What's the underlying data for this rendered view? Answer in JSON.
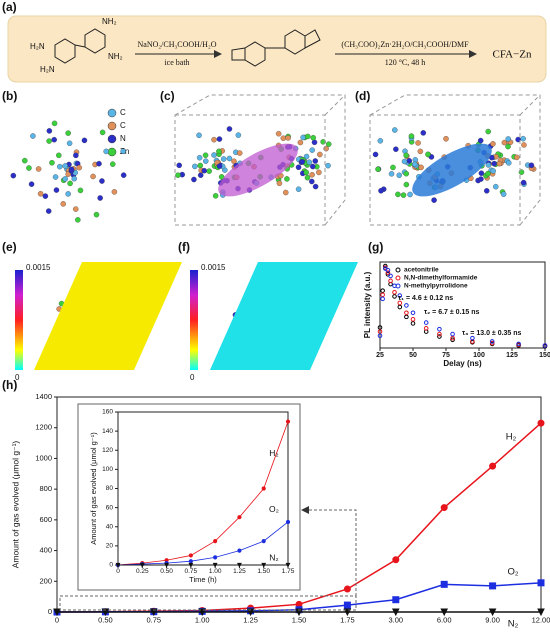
{
  "panel_labels": [
    "(a)",
    "(b)",
    "(c)",
    "(d)",
    "(e)",
    "(f)",
    "(g)",
    "(h)"
  ],
  "scheme": {
    "reagent1": "NaNO₂/CH₃COOH/H₂O",
    "condition1": "ice bath",
    "reagent2": "(CH₃COO)₂Zn·2H₂O/CH₃COOH/DMF",
    "condition2": "120 °C, 48 h",
    "product": "CFA−Zn"
  },
  "legend_b": [
    {
      "label": "C",
      "color": "#5ab4e5"
    },
    {
      "label": "C",
      "color": "#e0905a"
    },
    {
      "label": "N",
      "color": "#2b2fc8"
    },
    {
      "label": "Zn",
      "color": "#3ccf3c"
    }
  ],
  "colorbars": [
    {
      "max": 0.0015,
      "min": 0
    },
    {
      "max": 0.0015,
      "min": 0
    }
  ],
  "chart_data": [
    {
      "type": "scatter",
      "xlabel": "Delay (ns)",
      "ylabel": "PL intensity (a.u.)",
      "x": [
        25,
        27,
        29,
        31,
        33,
        36,
        40,
        45,
        50,
        60,
        70,
        80,
        95,
        110,
        130,
        150
      ],
      "xlim": [
        25,
        150
      ],
      "xticks": [
        25,
        50,
        75,
        100,
        125,
        150
      ],
      "ylim": [
        0,
        1.05
      ],
      "series": [
        {
          "name": "acetonitrile",
          "color": "#000000",
          "values": [
            0.25,
            0.7,
            1.0,
            0.9,
            0.78,
            0.63,
            0.5,
            0.38,
            0.3,
            0.2,
            0.14,
            0.1,
            0.07,
            0.05,
            0.03,
            0.02
          ]
        },
        {
          "name": "N,N-dimethylformamide",
          "color": "#e8141c",
          "values": [
            0.2,
            0.65,
            0.98,
            0.92,
            0.82,
            0.68,
            0.55,
            0.43,
            0.35,
            0.24,
            0.17,
            0.12,
            0.08,
            0.06,
            0.04,
            0.03
          ]
        },
        {
          "name": "N-methylpyrrolidone",
          "color": "#1c2ee0",
          "values": [
            0.15,
            0.6,
            0.97,
            0.95,
            0.88,
            0.76,
            0.64,
            0.52,
            0.43,
            0.31,
            0.23,
            0.17,
            0.12,
            0.08,
            0.05,
            0.03
          ]
        }
      ],
      "annotations": [
        {
          "text": "τ₁ = 4.6 ± 0.12 ns",
          "color": "#000000"
        },
        {
          "text": "τ₂ = 6.7 ± 0.15 ns",
          "color": "#e8141c"
        },
        {
          "text": "τ₃ = 13.0 ± 0.35 ns",
          "color": "#1c2ee0"
        }
      ]
    },
    {
      "type": "line",
      "ylabel": "Amount of gas evolved (μmol g⁻¹)",
      "categories": [
        "0",
        "0.50",
        "0.75",
        "1.00",
        "1.25",
        "1.50",
        "1.75",
        "3.00",
        "6.00",
        "9.00",
        "12.00"
      ],
      "ylim": [
        0,
        1400
      ],
      "yticks": [
        0,
        200,
        400,
        600,
        800,
        1000,
        1200,
        1400
      ],
      "series": [
        {
          "name": "H₂",
          "color": "#e8141c",
          "marker": "circle",
          "values": [
            0,
            2,
            5,
            10,
            25,
            50,
            150,
            340,
            680,
            950,
            1230
          ]
        },
        {
          "name": "O₂",
          "color": "#1c2ee0",
          "marker": "square",
          "values": [
            0,
            1,
            2,
            4,
            8,
            15,
            45,
            80,
            180,
            170,
            190
          ]
        },
        {
          "name": "N₂",
          "color": "#111111",
          "marker": "triangle",
          "values": [
            0,
            0,
            0,
            0,
            0,
            0,
            0,
            0,
            0,
            0,
            0
          ]
        }
      ]
    },
    {
      "type": "line",
      "xlabel": "Time (h)",
      "ylabel": "Amount of gas evolved (μmol g⁻¹)",
      "x": [
        0,
        0.25,
        0.5,
        0.75,
        1,
        1.25,
        1.5,
        1.75
      ],
      "xlim": [
        0,
        1.75
      ],
      "xticks": [
        0,
        0.25,
        {
          "value": 0.5,
          "label": "0.50"
        },
        0.75,
        {
          "value": 1,
          "label": "1.00"
        },
        1.25,
        {
          "value": 1.5,
          "label": "1.50"
        },
        1.75
      ],
      "ylim": [
        0,
        160
      ],
      "yticks": [
        0,
        20,
        40,
        60,
        80,
        100,
        120,
        140,
        160
      ],
      "series": [
        {
          "name": "H₂",
          "color": "#e8141c",
          "marker": "circle",
          "values": [
            0,
            2,
            5,
            10,
            25,
            50,
            80,
            150
          ]
        },
        {
          "name": "O₂",
          "color": "#1c2ee0",
          "marker": "circle",
          "values": [
            0,
            1,
            2,
            4,
            8,
            15,
            25,
            45
          ]
        },
        {
          "name": "N₂",
          "color": "#111111",
          "marker": "triangle",
          "values": [
            0,
            0,
            0,
            0,
            0,
            0,
            0,
            0
          ]
        }
      ]
    }
  ]
}
